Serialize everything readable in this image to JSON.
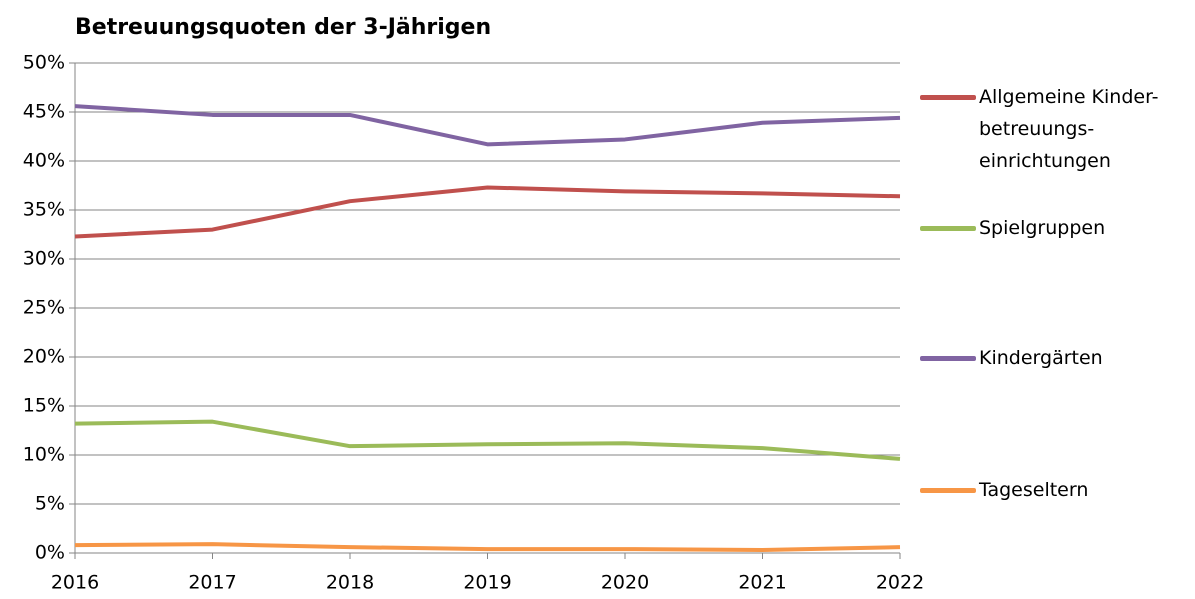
{
  "chart_data": {
    "type": "line",
    "title": "Betreuungsquoten der 3-Jährigen",
    "x": [
      2016,
      2017,
      2018,
      2019,
      2020,
      2021,
      2022
    ],
    "xlim": [
      2016,
      2022
    ],
    "xticks": [
      2016,
      2017,
      2018,
      2019,
      2020,
      2021,
      2022
    ],
    "ylim": [
      0,
      50
    ],
    "yticks": [
      {
        "value": 0,
        "label": "0%"
      },
      {
        "value": 5,
        "label": "5%"
      },
      {
        "value": 10,
        "label": "10%"
      },
      {
        "value": 15,
        "label": "15%"
      },
      {
        "value": 20,
        "label": "20%"
      },
      {
        "value": 25,
        "label": "25%"
      },
      {
        "value": 30,
        "label": "30%"
      },
      {
        "value": 35,
        "label": "35%"
      },
      {
        "value": 40,
        "label": "40%"
      },
      {
        "value": 45,
        "label": "45%"
      },
      {
        "value": 50,
        "label": "50%"
      }
    ],
    "grid": true,
    "legend": "right",
    "series": [
      {
        "name": "Allgemeine Kinder-betreuungs-einrichtungen",
        "color": "#c0504d",
        "values": [
          32.3,
          33.0,
          35.9,
          37.3,
          36.9,
          36.7,
          36.4
        ]
      },
      {
        "name": "Spielgruppen",
        "color": "#9bbb59",
        "values": [
          13.2,
          13.4,
          10.9,
          11.1,
          11.2,
          10.7,
          9.6
        ]
      },
      {
        "name": "Kindergärten",
        "color": "#8064a2",
        "values": [
          45.6,
          44.7,
          44.7,
          41.7,
          42.2,
          43.9,
          44.4
        ]
      },
      {
        "name": "Tageseltern",
        "color": "#f79646",
        "values": [
          0.8,
          0.9,
          0.6,
          0.4,
          0.4,
          0.3,
          0.6
        ]
      }
    ]
  }
}
